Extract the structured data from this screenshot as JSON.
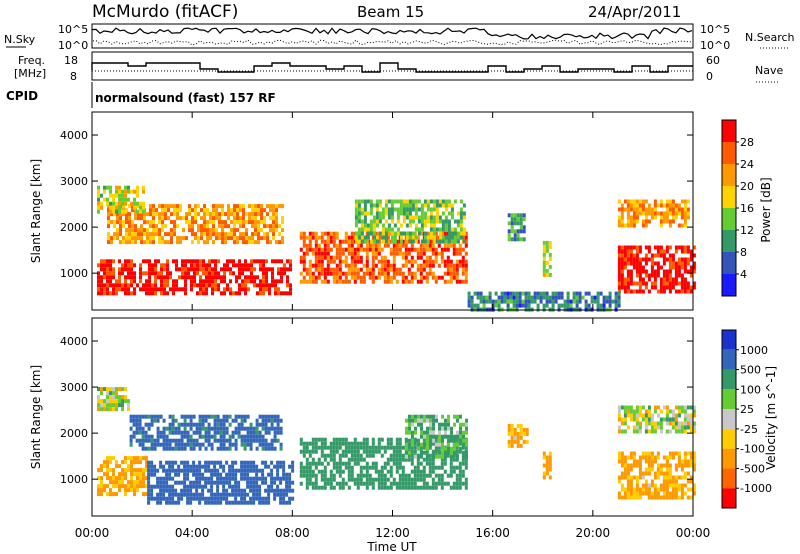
{
  "header": {
    "station": "McMurdo (fitACF)",
    "beam": "Beam 15",
    "date": "24/Apr/2011"
  },
  "strip": {
    "nsky_label": "N.Sky",
    "nsearch_label": "N.Search",
    "nsky_tick_hi": "10^5",
    "nsky_tick_lo": "10^0",
    "nsearch_tick_hi": "10^5",
    "nsearch_tick_lo": "10^0",
    "freq_label_1": "Freq.",
    "freq_label_2": "[MHz]",
    "freq_ticks": [
      "18",
      "8"
    ],
    "nave_label": "Nave",
    "nave_ticks": [
      "60",
      "0"
    ],
    "cpid_label": "CPID",
    "cpid_text": "normalsound (fast) 157 RF"
  },
  "axes": {
    "x_label": "Time UT",
    "x_ticks": [
      "00:00",
      "04:00",
      "08:00",
      "12:00",
      "16:00",
      "20:00",
      "00:00"
    ],
    "y_label": "Slant Range [km]",
    "y_ticks": [
      "4000",
      "3000",
      "2000",
      "1000"
    ]
  },
  "colorbar_power": {
    "label": "Power [dB]",
    "ticks": [
      "28",
      "24",
      "20",
      "16",
      "12",
      "8",
      "4"
    ],
    "colors": [
      "#ff0000",
      "#ff5a00",
      "#ff9900",
      "#ffd200",
      "#66cc33",
      "#339966",
      "#3355bb",
      "#1a1aff"
    ]
  },
  "colorbar_velocity": {
    "label": "Velocity [m s^-1]",
    "ticks": [
      "1000",
      "500",
      "100",
      "25",
      "-25",
      "-100",
      "-500",
      "-1000"
    ],
    "colors": [
      "#1a33cc",
      "#3366bb",
      "#339966",
      "#66cc33",
      "#c8c8c8",
      "#ffcc00",
      "#ff9900",
      "#ff6600",
      "#ff0000"
    ]
  },
  "chart_data": [
    {
      "type": "heatmap",
      "title": "Power",
      "xlabel": "Time UT",
      "ylabel": "Slant Range [km]",
      "xlim": [
        0,
        24
      ],
      "ylim": [
        200,
        4500
      ],
      "colorbar": "Power [dB]",
      "clim": [
        0,
        30
      ],
      "regions": [
        {
          "t0": 0.2,
          "t1": 7.9,
          "r0": 600,
          "r1": 1300,
          "value": 28
        },
        {
          "t0": 0.6,
          "t1": 7.6,
          "r0": 1700,
          "r1": 2500,
          "value": 20
        },
        {
          "t0": 0.2,
          "t1": 2.0,
          "r0": 2300,
          "r1": 2900,
          "value": 14
        },
        {
          "t0": 8.3,
          "t1": 14.9,
          "r0": 800,
          "r1": 1900,
          "value": 24
        },
        {
          "t0": 10.5,
          "t1": 14.9,
          "r0": 1700,
          "r1": 2600,
          "value": 12
        },
        {
          "t0": 16.6,
          "t1": 17.3,
          "r0": 1700,
          "r1": 2300,
          "value": 8
        },
        {
          "t0": 18.0,
          "t1": 18.3,
          "r0": 1000,
          "r1": 1700,
          "value": 14
        },
        {
          "t0": 21.0,
          "t1": 24.0,
          "r0": 600,
          "r1": 1600,
          "value": 28
        },
        {
          "t0": 21.0,
          "t1": 23.8,
          "r0": 2000,
          "r1": 2600,
          "value": 20
        },
        {
          "t0": 15.0,
          "t1": 21.0,
          "r0": 200,
          "r1": 600,
          "value": 6
        }
      ]
    },
    {
      "type": "heatmap",
      "title": "Velocity",
      "xlabel": "Time UT",
      "ylabel": "Slant Range [km]",
      "xlim": [
        0,
        24
      ],
      "ylim": [
        200,
        4500
      ],
      "colorbar": "Velocity [m s^-1]",
      "clim": [
        -1000,
        1000
      ],
      "regions": [
        {
          "t0": 0.2,
          "t1": 2.2,
          "r0": 700,
          "r1": 1500,
          "value": -150
        },
        {
          "t0": 2.2,
          "t1": 8.0,
          "r0": 500,
          "r1": 1400,
          "value": 800
        },
        {
          "t0": 1.5,
          "t1": 7.6,
          "r0": 1700,
          "r1": 2400,
          "value": 600
        },
        {
          "t0": 0.2,
          "t1": 1.5,
          "r0": 2500,
          "r1": 3000,
          "value": 0
        },
        {
          "t0": 8.3,
          "t1": 14.9,
          "r0": 800,
          "r1": 1900,
          "value": 300
        },
        {
          "t0": 12.5,
          "t1": 14.9,
          "r0": 1500,
          "r1": 2400,
          "value": 120
        },
        {
          "t0": 16.6,
          "t1": 17.4,
          "r0": 1700,
          "r1": 2200,
          "value": -150
        },
        {
          "t0": 18.0,
          "t1": 18.3,
          "r0": 1000,
          "r1": 1600,
          "value": -150
        },
        {
          "t0": 21.0,
          "t1": 24.0,
          "r0": 600,
          "r1": 1600,
          "value": -150
        },
        {
          "t0": 21.0,
          "t1": 24.0,
          "r0": 2000,
          "r1": 2600,
          "value": 0
        }
      ]
    }
  ]
}
